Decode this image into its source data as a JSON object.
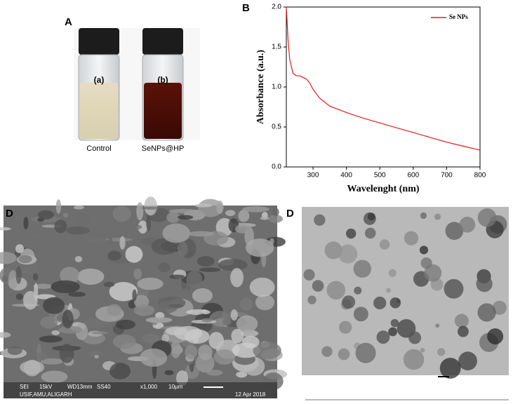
{
  "panels": {
    "a": {
      "label": "A",
      "vial_a": "(a)",
      "vial_b": "(b)",
      "caption_a": "Control",
      "caption_b": "SeNPs@HP"
    },
    "b": {
      "label": "B"
    },
    "c": {
      "label": "D",
      "info": [
        "SEI",
        "15kV",
        "WD13mm",
        "SS40",
        "x1,000",
        "10μm"
      ],
      "lab": "USIF,AMU,ALIGARH",
      "date": "12 Apr 2018"
    },
    "d": {
      "label": "D"
    }
  },
  "chart_data": {
    "type": "line",
    "x_label": "Wavelenght (nm)",
    "y_label": "Absorbance (a.u.)",
    "x": [
      220,
      222,
      225,
      230,
      240,
      250,
      260,
      270,
      280,
      290,
      300,
      320,
      350,
      400,
      450,
      500,
      550,
      600,
      650,
      700,
      750,
      800
    ],
    "series": [
      {
        "name": "Se NPs",
        "color": "#e31a1c",
        "values": [
          2.0,
          1.85,
          1.6,
          1.35,
          1.17,
          1.14,
          1.14,
          1.12,
          1.1,
          1.05,
          0.97,
          0.86,
          0.76,
          0.68,
          0.61,
          0.55,
          0.49,
          0.43,
          0.37,
          0.31,
          0.26,
          0.21
        ]
      }
    ],
    "xlim": [
      220,
      800
    ],
    "xticks": [
      300,
      400,
      500,
      600,
      700,
      800
    ],
    "ylim": [
      0,
      2.0
    ],
    "yticks": [
      {
        "value": 0,
        "label": "0.0"
      },
      0.5,
      {
        "value": 1.0,
        "label": "1.0"
      },
      1.5,
      {
        "value": 2.0,
        "label": "2.0"
      }
    ],
    "legend": "upper right",
    "grid": false
  }
}
